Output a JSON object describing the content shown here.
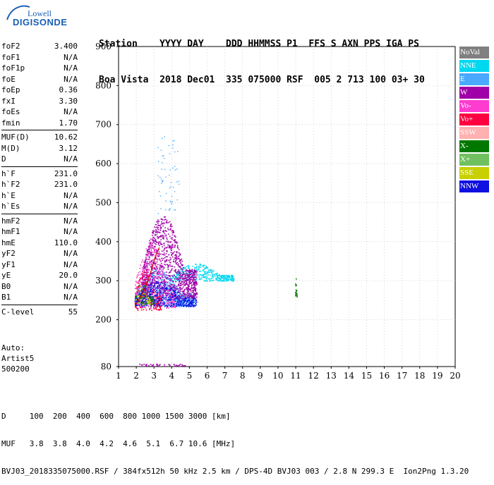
{
  "logo": {
    "top": "Lowell",
    "bottom": "DIGISONDE"
  },
  "header": {
    "line1": "Station    YYYY DAY    DDD HHMMSS P1  FFS S AXN PPS IGA PS",
    "line2": "Boa Vista  2018 Dec01  335 075000 RSF  005 2 713 100 03+ 30"
  },
  "params": [
    {
      "label": "foF2",
      "value": "3.400"
    },
    {
      "label": "foF1",
      "value": "N/A"
    },
    {
      "label": "foF1p",
      "value": "N/A"
    },
    {
      "label": "foE",
      "value": "N/A"
    },
    {
      "label": "foEp",
      "value": "0.36"
    },
    {
      "label": "fxI",
      "value": "3.30"
    },
    {
      "label": "foEs",
      "value": "N/A"
    },
    {
      "label": "fmin",
      "value": "1.70"
    },
    {
      "sep": true
    },
    {
      "label": "MUF(D)",
      "value": "10.62"
    },
    {
      "label": "M(D)",
      "value": "3.12"
    },
    {
      "label": "D",
      "value": "N/A"
    },
    {
      "sep": true
    },
    {
      "label": "h`F",
      "value": "231.0"
    },
    {
      "label": "h`F2",
      "value": "231.0"
    },
    {
      "label": "h`E",
      "value": "N/A"
    },
    {
      "label": "h`Es",
      "value": "N/A"
    },
    {
      "sep": true
    },
    {
      "label": "hmF2",
      "value": "N/A"
    },
    {
      "label": "hmF1",
      "value": "N/A"
    },
    {
      "label": "hmE",
      "value": "110.0"
    },
    {
      "label": "yF2",
      "value": "N/A"
    },
    {
      "label": "yF1",
      "value": "N/A"
    },
    {
      "label": "yE",
      "value": "20.0"
    },
    {
      "label": "B0",
      "value": "N/A"
    },
    {
      "label": "B1",
      "value": "N/A"
    },
    {
      "sep": true
    },
    {
      "label": "C-level",
      "value": "55"
    }
  ],
  "auto": {
    "l1": "Auto:",
    "l2": "Artist5",
    "l3": "500200"
  },
  "legend": [
    {
      "label": "NoVal",
      "color": "#808080"
    },
    {
      "label": "NNE",
      "color": "#00d8f0"
    },
    {
      "label": "E",
      "color": "#4aa8ff"
    },
    {
      "label": "W",
      "color": "#a000a8"
    },
    {
      "label": "Vo-",
      "color": "#ff3ccf"
    },
    {
      "label": "Vo+",
      "color": "#ff0040"
    },
    {
      "label": "SSW",
      "color": "#ffb0b0"
    },
    {
      "label": "X-",
      "color": "#007800"
    },
    {
      "label": "X+",
      "color": "#70c060"
    },
    {
      "label": "SSE",
      "color": "#c8d000"
    },
    {
      "label": "NNW",
      "color": "#1010e0"
    }
  ],
  "footer": {
    "line1": "D     100  200  400  600  800 1000 1500 3000 [km]",
    "line2": "MUF   3.8  3.8  4.0  4.2  4.6  5.1  6.7 10.6 [MHz]",
    "line3": "BVJ03_2018335075000.RSF / 384fx512h 50 kHz 2.5 km / DPS-4D BVJ03 003 / 2.8 N 299.3 E  Ion2Png 1.3.20"
  },
  "chart_data": {
    "type": "scatter",
    "title": "",
    "xlabel": "",
    "ylabel": "",
    "xlim": [
      1,
      20
    ],
    "ylim": [
      80,
      900
    ],
    "xticks": [
      1,
      2,
      3,
      4,
      5,
      6,
      7,
      8,
      9,
      10,
      11,
      12,
      13,
      14,
      15,
      16,
      17,
      18,
      19,
      20
    ],
    "yticks": [
      80,
      200,
      300,
      400,
      500,
      600,
      700,
      800,
      900
    ],
    "regions": [
      {
        "name": "E",
        "xrange": [
          1.9,
          5.3
        ],
        "yrange": [
          235,
          330
        ],
        "n": 900
      },
      {
        "name": "NNE",
        "xrange": [
          4.0,
          7.5
        ],
        "yrange": [
          300,
          345
        ],
        "n": 380
      },
      {
        "name": "W",
        "xrange": [
          2.3,
          5.4
        ],
        "yrange": [
          255,
          470
        ],
        "n": 1200
      },
      {
        "name": "Vo-",
        "xrange": [
          1.9,
          4.2
        ],
        "yrange": [
          230,
          400
        ],
        "n": 350
      },
      {
        "name": "Vo+",
        "xrange": [
          1.9,
          3.4
        ],
        "yrange": [
          225,
          330
        ],
        "n": 200
      },
      {
        "name": "NNW",
        "xrange": [
          1.9,
          5.4
        ],
        "yrange": [
          235,
          300
        ],
        "n": 420
      },
      {
        "name": "X-",
        "xrange": [
          1.9,
          3.0
        ],
        "yrange": [
          240,
          300
        ],
        "n": 60
      },
      {
        "name": "SSE",
        "xrange": [
          1.9,
          2.8
        ],
        "yrange": [
          240,
          290
        ],
        "n": 40
      },
      {
        "name": "X-",
        "xrange": [
          10.95,
          11.05
        ],
        "yrange": [
          255,
          325
        ],
        "n": 20
      }
    ],
    "trace": [
      [
        2.0,
        240
      ],
      [
        2.2,
        255
      ],
      [
        2.5,
        280
      ],
      [
        2.8,
        320
      ],
      [
        3.1,
        365
      ],
      [
        3.3,
        385
      ]
    ]
  }
}
